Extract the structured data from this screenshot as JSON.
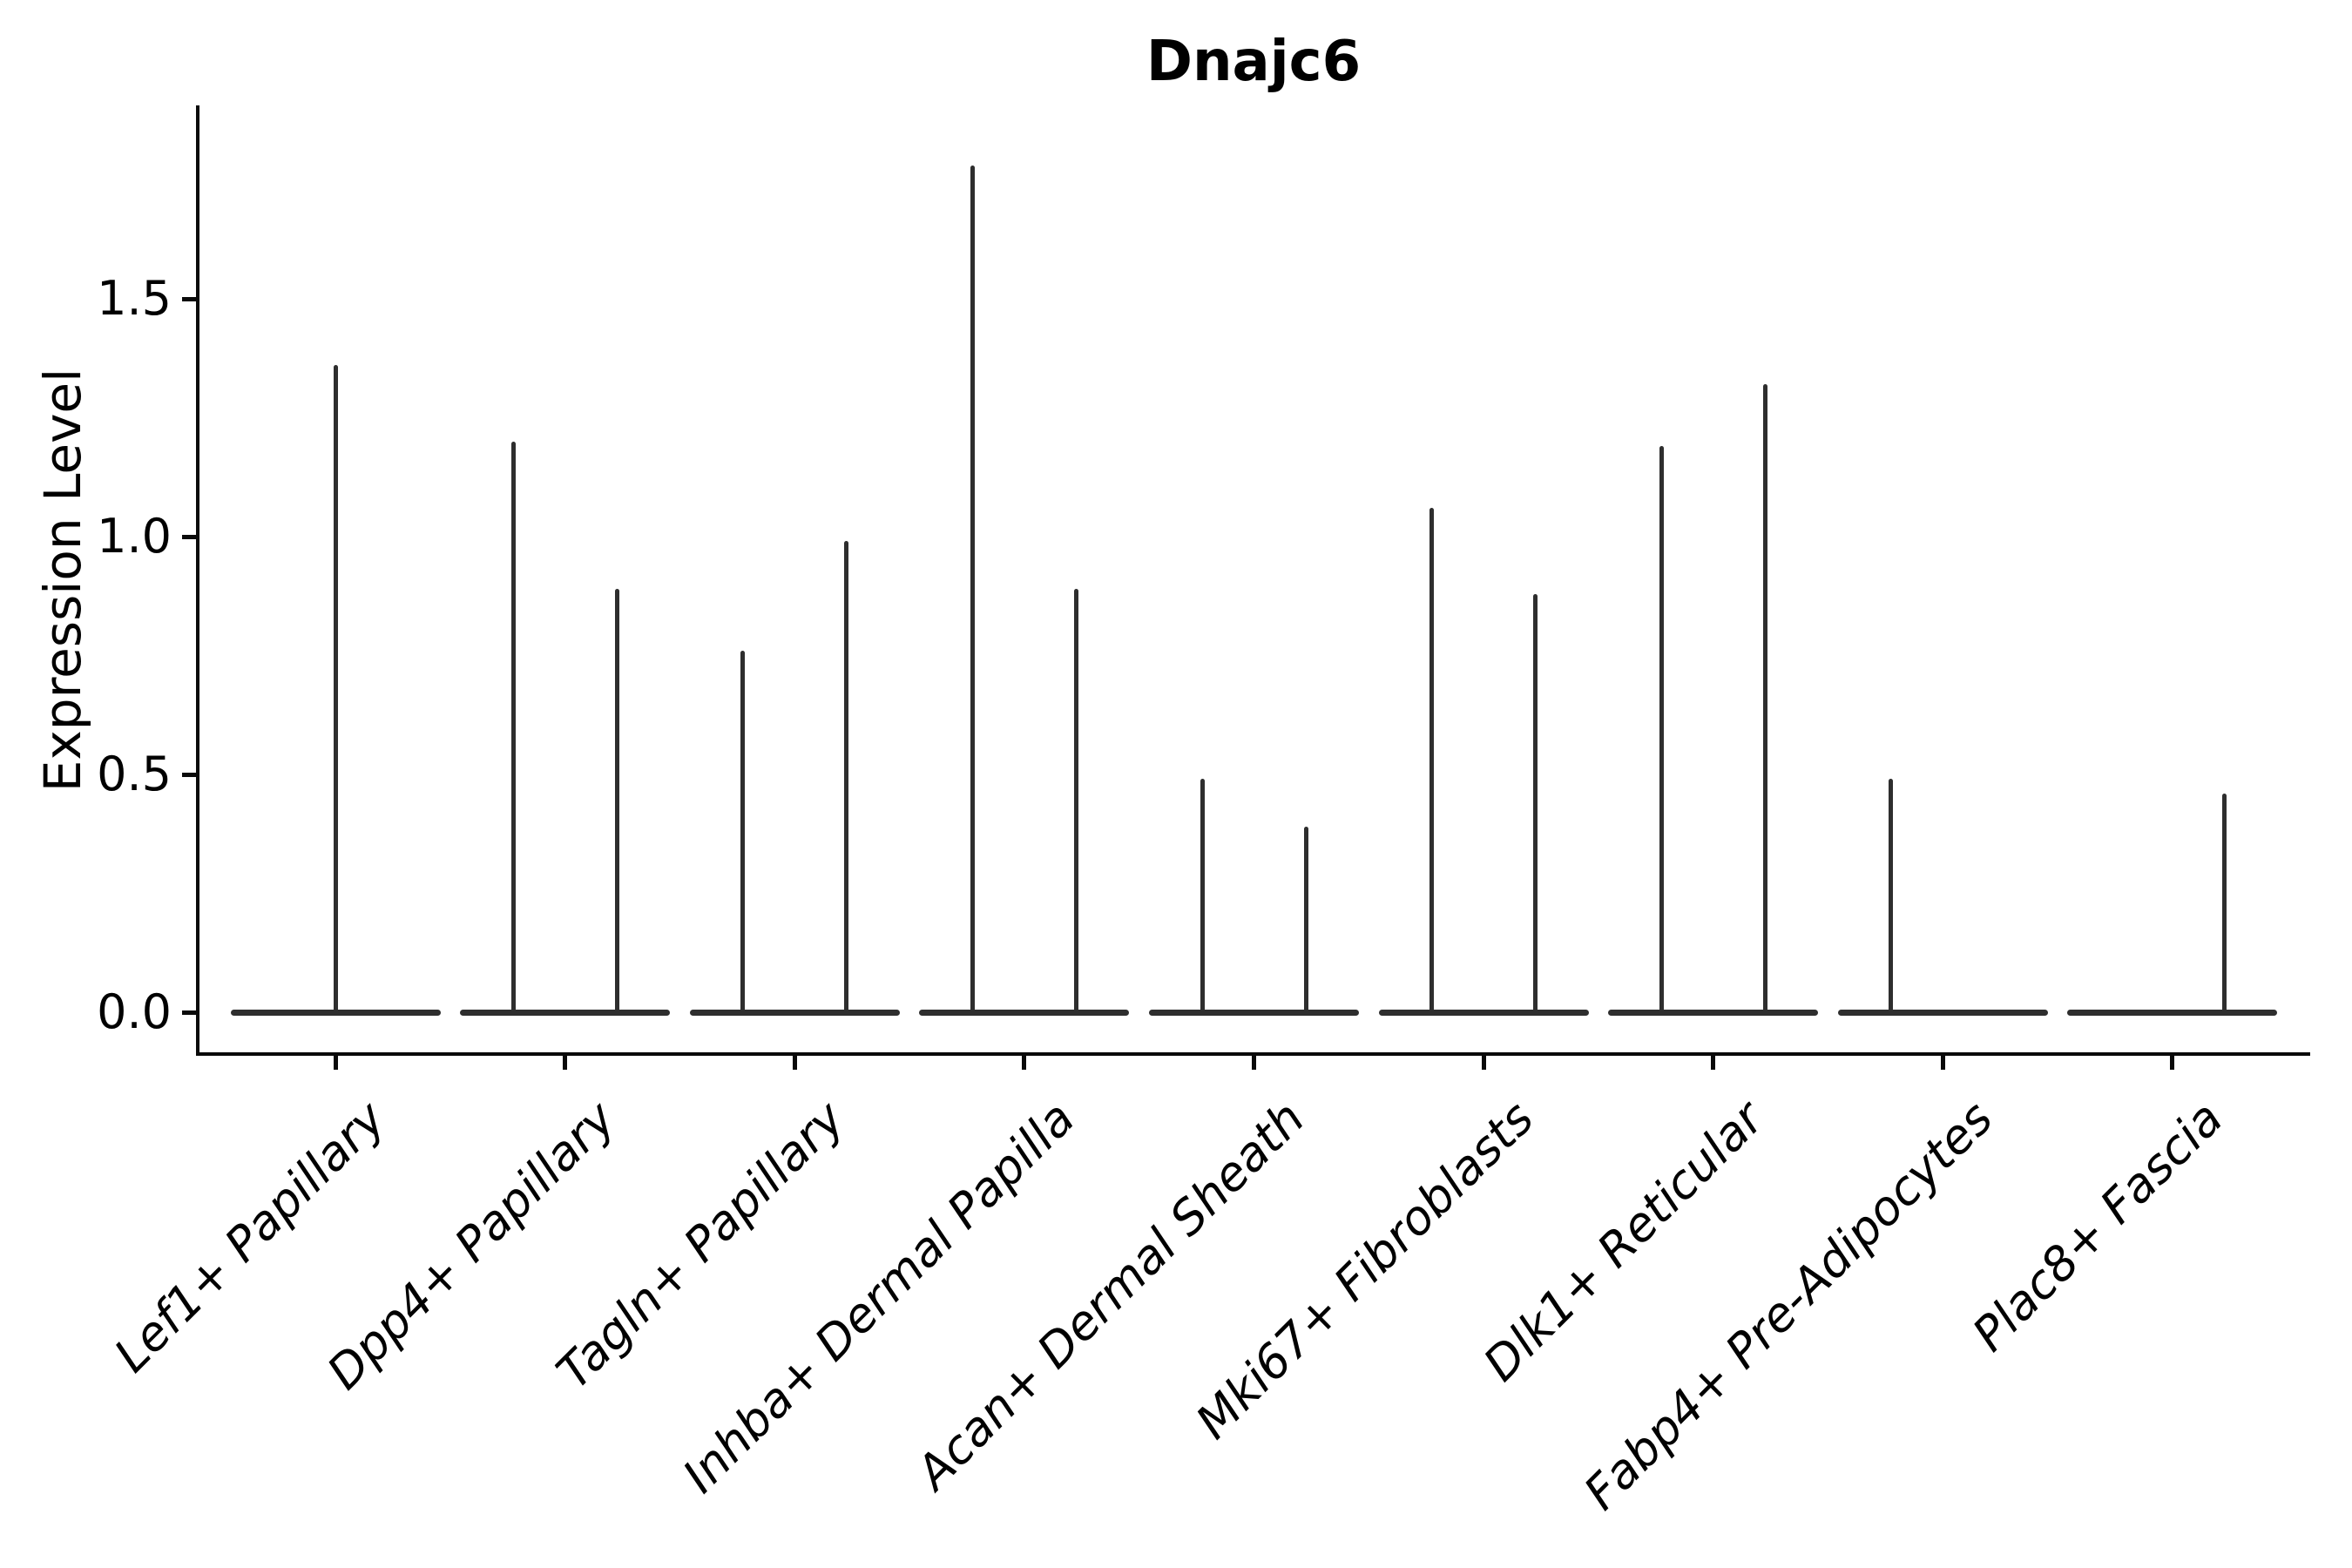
{
  "title": "Dnajc6",
  "y_axis": {
    "label": "Expression Level",
    "tick_labels": [
      "1.5",
      "1.0",
      "0.5",
      "0.0"
    ]
  },
  "colors": {
    "violin": "#2e2e2e",
    "axis": "#0a0a0a",
    "text": "#000000",
    "background": "#ffffff"
  },
  "chart_data": {
    "type": "violin",
    "title": "Dnajc6",
    "xlabel": "",
    "ylabel": "Expression Level",
    "ylim": [
      -0.09,
      1.87
    ],
    "yticks": [
      0.0,
      0.5,
      1.0,
      1.5
    ],
    "ytick_labels": [
      "0.0",
      "0.5",
      "1.0",
      "1.5"
    ],
    "grid": false,
    "legend": "none",
    "shape_note": "Zero-inflated expression violins: each category shows a wide flat density base at 0 with thin vertical tail spike(s) reaching the maximum expression value; tails sit at left/right dodge positions (center +/- 0.225 category widths) or centered when single.",
    "categories": [
      "Lef1+ Papillary",
      "Dpp4+ Papillary",
      "Tagln+ Papillary",
      "Inhba+ Dermal Papilla",
      "Acan+ Dermal Sheath",
      "Mki67+ Fibroblasts",
      "Dlk1+ Reticular",
      "Fabp4+ Pre-Adipocytes",
      "Plac8+ Fascia"
    ],
    "violins": [
      {
        "category": "Lef1+ Papillary",
        "tails": [
          {
            "position": "center",
            "max": 1.36
          }
        ]
      },
      {
        "category": "Dpp4+ Papillary",
        "tails": [
          {
            "position": "left",
            "max": 1.2
          },
          {
            "position": "right",
            "max": 0.89
          }
        ]
      },
      {
        "category": "Tagln+ Papillary",
        "tails": [
          {
            "position": "left",
            "max": 0.76
          },
          {
            "position": "right",
            "max": 0.99
          }
        ]
      },
      {
        "category": "Inhba+ Dermal Papilla",
        "tails": [
          {
            "position": "left",
            "max": 1.78
          },
          {
            "position": "right",
            "max": 0.89
          }
        ]
      },
      {
        "category": "Acan+ Dermal Sheath",
        "tails": [
          {
            "position": "left",
            "max": 0.49
          },
          {
            "position": "right",
            "max": 0.39
          }
        ]
      },
      {
        "category": "Mki67+ Fibroblasts",
        "tails": [
          {
            "position": "left",
            "max": 1.06
          },
          {
            "position": "right",
            "max": 0.88
          }
        ]
      },
      {
        "category": "Dlk1+ Reticular",
        "tails": [
          {
            "position": "left",
            "max": 1.19
          },
          {
            "position": "right",
            "max": 1.32
          }
        ]
      },
      {
        "category": "Fabp4+ Pre-Adipocytes",
        "tails": [
          {
            "position": "left",
            "max": 0.49
          }
        ]
      },
      {
        "category": "Plac8+ Fascia",
        "tails": [
          {
            "position": "right",
            "max": 0.46
          }
        ]
      }
    ]
  }
}
